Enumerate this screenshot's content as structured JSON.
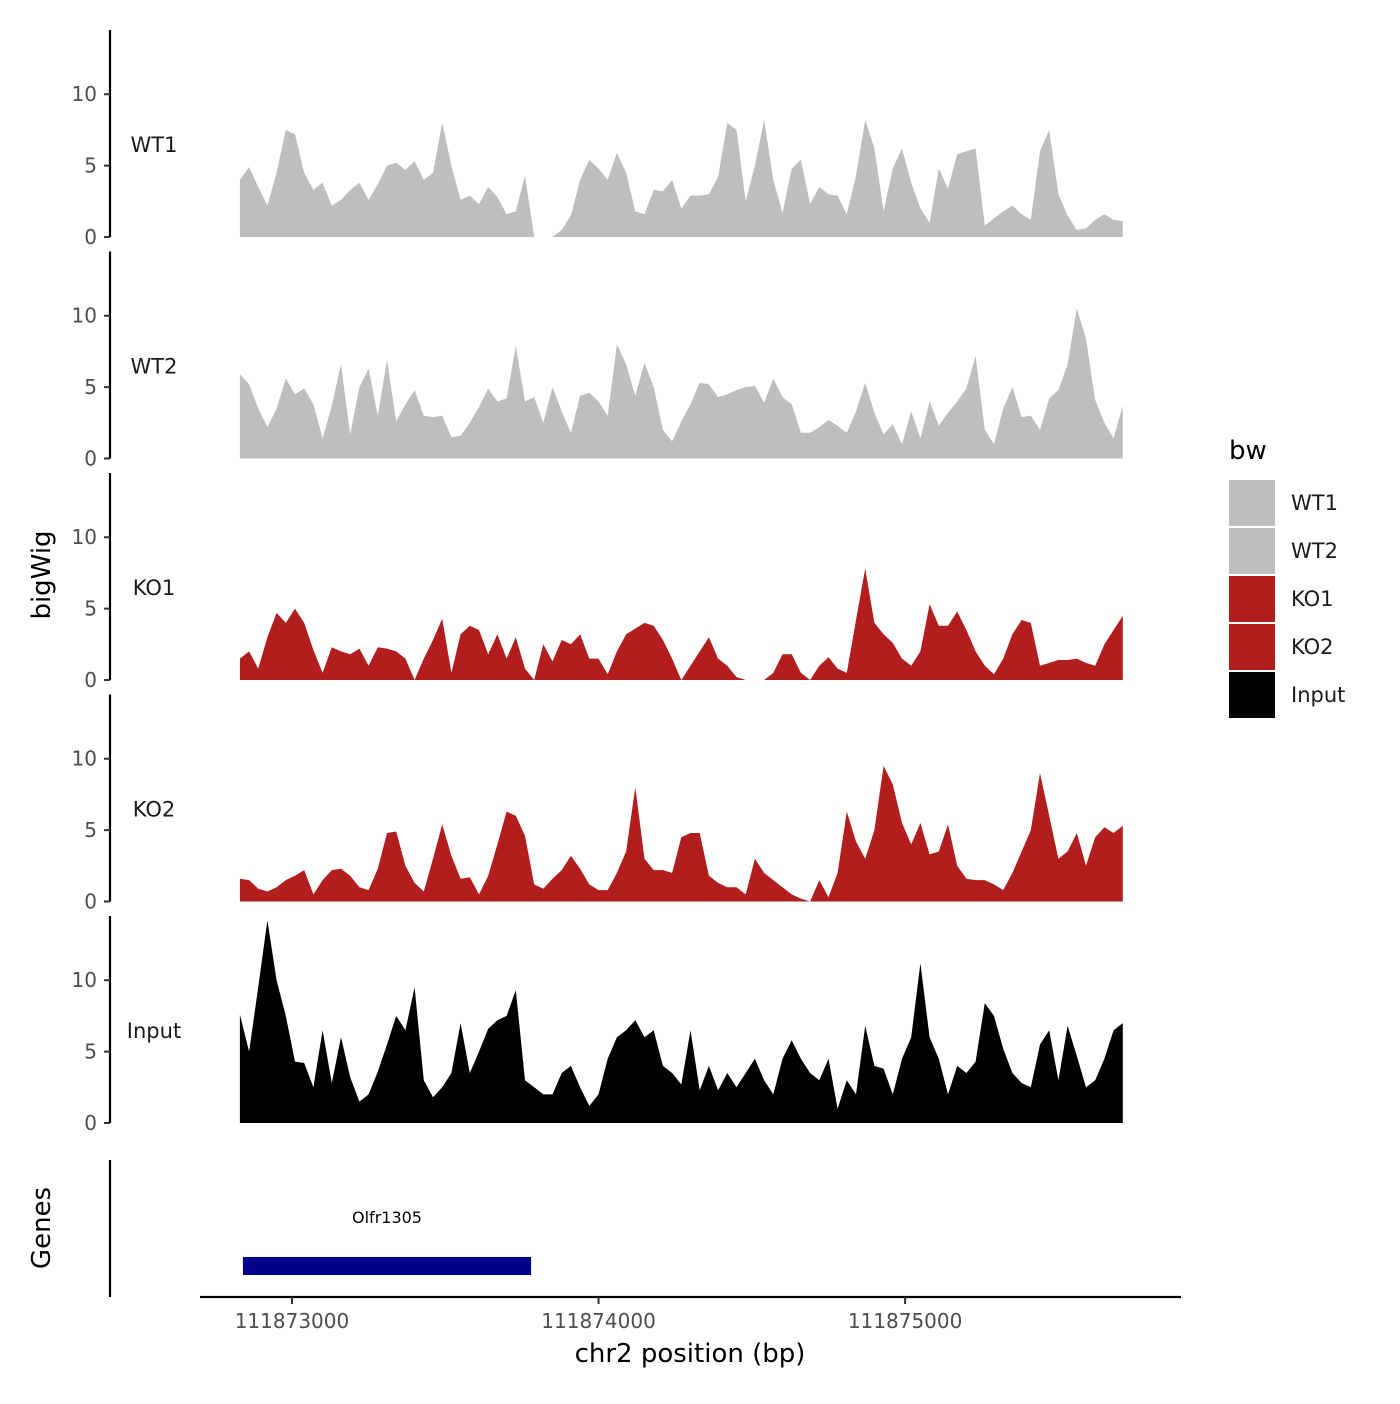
{
  "chart_data": {
    "type": "area",
    "x_title": "chr2 position (bp)",
    "y_title": "bigWig",
    "genes_title": "Genes",
    "xlim": [
      111872700,
      111875900
    ],
    "x_ticks": [
      111873000,
      111874000,
      111875000
    ],
    "x_tick_labels": [
      "111873000",
      "111874000",
      "111875000"
    ],
    "y_ticks": [
      0,
      5,
      10
    ],
    "y_tick_labels": [
      "0",
      "5",
      "10"
    ],
    "ylim": [
      0,
      14.5
    ],
    "legend": {
      "title": "bw",
      "position": "right",
      "entries": [
        {
          "label": "WT1",
          "color": "#bebebe"
        },
        {
          "label": "WT2",
          "color": "#bebebe"
        },
        {
          "label": "KO1",
          "color": "#b21e1e"
        },
        {
          "label": "KO2",
          "color": "#b21e1e"
        },
        {
          "label": "Input",
          "color": "#000000"
        }
      ]
    },
    "x_sample_positions": [
      111872830,
      111872860,
      111872890,
      111872920,
      111872950,
      111872980,
      111873010,
      111873040,
      111873070,
      111873100,
      111873130,
      111873160,
      111873190,
      111873220,
      111873250,
      111873280,
      111873310,
      111873340,
      111873370,
      111873400,
      111873430,
      111873460,
      111873490,
      111873520,
      111873550,
      111873580,
      111873610,
      111873640,
      111873670,
      111873700,
      111873730,
      111873760,
      111873790,
      111873820,
      111873850,
      111873880,
      111873910,
      111873940,
      111873970,
      111874000,
      111874030,
      111874060,
      111874090,
      111874120,
      111874150,
      111874180,
      111874210,
      111874240,
      111874270,
      111874300,
      111874330,
      111874360,
      111874390,
      111874420,
      111874450,
      111874480,
      111874510,
      111874540,
      111874570,
      111874600,
      111874630,
      111874660,
      111874690,
      111874720,
      111874750,
      111874780,
      111874810,
      111874840,
      111874870,
      111874900,
      111874930,
      111874960,
      111874990,
      111875020,
      111875050,
      111875080,
      111875110,
      111875140,
      111875170,
      111875200,
      111875230,
      111875260,
      111875290,
      111875320,
      111875350,
      111875380,
      111875410,
      111875440,
      111875470,
      111875500,
      111875530,
      111875560,
      111875590,
      111875620,
      111875650,
      111875680,
      111875710
    ],
    "series": [
      {
        "name": "WT1",
        "color": "#bebebe",
        "label": "WT1",
        "values": [
          4,
          4.9,
          3.5,
          2.2,
          4.5,
          7.5,
          7.2,
          4.5,
          3.3,
          3.8,
          2.2,
          2.6,
          3.3,
          3.8,
          2.6,
          3.7,
          5.0,
          5.2,
          4.7,
          5.3,
          4.0,
          4.5,
          8.0,
          5.0,
          2.6,
          2.9,
          2.3,
          3.5,
          2.8,
          1.6,
          1.8,
          4.3,
          0,
          0,
          0,
          0.5,
          1.5,
          4.0,
          5.4,
          4.8,
          4.0,
          5.9,
          4.5,
          1.8,
          1.6,
          3.3,
          3.2,
          4.0,
          2.0,
          2.9,
          2.9,
          3.0,
          4.2,
          8.0,
          7.5,
          2.5,
          5.0,
          8.2,
          4.0,
          1.7,
          4.8,
          5.4,
          2.3,
          3.5,
          3.0,
          2.9,
          1.6,
          4.3,
          8.2,
          6.2,
          1.8,
          4.8,
          6.2,
          3.8,
          2.0,
          1.0,
          4.8,
          3.4,
          5.8,
          6.0,
          6.2,
          0.8,
          1.3,
          1.8,
          2.2,
          1.6,
          1.2,
          6.0,
          7.5,
          3.0,
          1.5,
          0.5,
          0.6,
          1.2,
          1.6,
          1.2,
          1.1
        ]
      },
      {
        "name": "WT2",
        "color": "#bebebe",
        "label": "WT2",
        "values": [
          5.9,
          5.2,
          3.5,
          2.2,
          3.5,
          5.6,
          4.5,
          4.9,
          3.8,
          1.4,
          3.7,
          6.6,
          1.7,
          5.0,
          6.3,
          3.0,
          6.9,
          2.6,
          3.8,
          4.8,
          3.0,
          2.9,
          3.0,
          1.5,
          1.6,
          2.5,
          3.6,
          4.9,
          4.0,
          4.2,
          7.9,
          4.0,
          4.3,
          2.5,
          5.0,
          3.3,
          1.8,
          4.4,
          4.6,
          4.0,
          3.0,
          8.0,
          6.6,
          4.4,
          6.7,
          5.0,
          2.0,
          1.2,
          2.6,
          3.8,
          5.3,
          5.2,
          4.3,
          4.5,
          4.8,
          5.0,
          5.1,
          3.9,
          5.6,
          4.3,
          3.8,
          1.8,
          1.8,
          2.2,
          2.7,
          2.3,
          1.8,
          3.3,
          5.3,
          3.2,
          1.7,
          2.4,
          1.0,
          3.3,
          1.4,
          4.0,
          2.3,
          3.2,
          4.0,
          4.9,
          7.2,
          2.0,
          1.0,
          3.5,
          5.0,
          2.9,
          3.0,
          2.0,
          4.2,
          4.8,
          6.6,
          10.5,
          8.4,
          4.1,
          2.5,
          1.4,
          3.7
        ]
      },
      {
        "name": "KO1",
        "color": "#b21e1e",
        "label": "KO1",
        "values": [
          1.5,
          2.0,
          0.8,
          3.0,
          4.7,
          4.0,
          5.0,
          4.0,
          2.1,
          0.5,
          2.3,
          2.0,
          1.8,
          2.2,
          1.0,
          2.3,
          2.2,
          2.0,
          1.5,
          0,
          1.5,
          2.8,
          4.3,
          0.5,
          3.2,
          3.8,
          3.5,
          1.8,
          3.2,
          1.5,
          3.0,
          0.8,
          0,
          2.5,
          1.3,
          2.8,
          2.5,
          3.2,
          1.5,
          1.5,
          0.4,
          2.0,
          3.2,
          3.6,
          4.0,
          3.8,
          2.8,
          1.5,
          0,
          1.0,
          2.0,
          3.0,
          1.5,
          1.0,
          0.2,
          0,
          0,
          0,
          0.5,
          1.8,
          1.8,
          0.5,
          0,
          1.0,
          1.6,
          0.8,
          0.5,
          4.2,
          7.8,
          4.0,
          3.2,
          2.6,
          1.5,
          1.0,
          2.0,
          5.3,
          3.8,
          3.8,
          4.8,
          3.5,
          2.0,
          1.0,
          0.4,
          1.5,
          3.2,
          4.2,
          4.0,
          1.0,
          1.2,
          1.4,
          1.4,
          1.5,
          1.2,
          1.0,
          2.5,
          3.5,
          4.5
        ]
      },
      {
        "name": "KO2",
        "color": "#b21e1e",
        "label": "KO2",
        "values": [
          1.6,
          1.5,
          0.9,
          0.7,
          1.0,
          1.5,
          1.8,
          2.2,
          0.5,
          1.5,
          2.2,
          2.3,
          1.8,
          1.0,
          0.8,
          2.3,
          4.8,
          4.9,
          2.5,
          1.3,
          0.7,
          3.0,
          5.4,
          3.2,
          1.6,
          1.7,
          0.5,
          1.8,
          4.0,
          6.3,
          6.0,
          4.6,
          1.2,
          0.9,
          1.6,
          2.2,
          3.2,
          2.3,
          1.2,
          0.8,
          0.8,
          2.0,
          3.5,
          8.0,
          3.0,
          2.2,
          2.2,
          2.0,
          4.5,
          4.8,
          4.8,
          1.8,
          1.3,
          1.0,
          1.0,
          0.5,
          3.0,
          2.0,
          1.5,
          1.0,
          0.5,
          0.2,
          0,
          1.5,
          0.3,
          2.0,
          6.3,
          4.2,
          3.0,
          5.0,
          9.5,
          8.2,
          5.5,
          4.0,
          5.5,
          3.3,
          3.5,
          5.4,
          2.5,
          1.6,
          1.5,
          1.5,
          1.2,
          0.8,
          2.0,
          3.5,
          5.0,
          9.0,
          6.0,
          3.0,
          3.5,
          4.8,
          2.5,
          4.5,
          5.2,
          4.8,
          5.3
        ]
      },
      {
        "name": "Input",
        "color": "#000000",
        "label": "Input",
        "values": [
          7.6,
          5.0,
          9.5,
          14.2,
          10.0,
          7.5,
          4.3,
          4.2,
          2.5,
          6.5,
          2.8,
          6.0,
          3.2,
          1.5,
          2.0,
          3.6,
          5.5,
          7.5,
          6.5,
          9.5,
          3.0,
          1.8,
          2.5,
          3.5,
          7.0,
          3.5,
          5.0,
          6.6,
          7.2,
          7.5,
          9.3,
          3.0,
          2.5,
          2.0,
          2.0,
          3.5,
          4.0,
          2.5,
          1.2,
          2.0,
          4.5,
          6.0,
          6.5,
          7.2,
          6.0,
          6.5,
          4.0,
          3.5,
          2.7,
          6.5,
          2.3,
          4.0,
          2.3,
          3.5,
          2.5,
          3.5,
          4.5,
          3.0,
          2.0,
          4.5,
          5.8,
          4.5,
          3.5,
          3.0,
          4.5,
          1.0,
          3.0,
          2.0,
          6.8,
          4.0,
          3.8,
          2.0,
          4.5,
          6.0,
          11.2,
          6.0,
          4.5,
          2.0,
          4.0,
          3.5,
          4.3,
          8.4,
          7.5,
          5.2,
          3.5,
          2.8,
          2.5,
          5.5,
          6.5,
          3.0,
          6.8,
          4.7,
          2.5,
          3.0,
          4.5,
          6.5,
          7.0
        ]
      }
    ],
    "genes": [
      {
        "name": "Olfr1305",
        "start": 111872840,
        "end": 111873780,
        "color": "#00008b"
      }
    ]
  }
}
